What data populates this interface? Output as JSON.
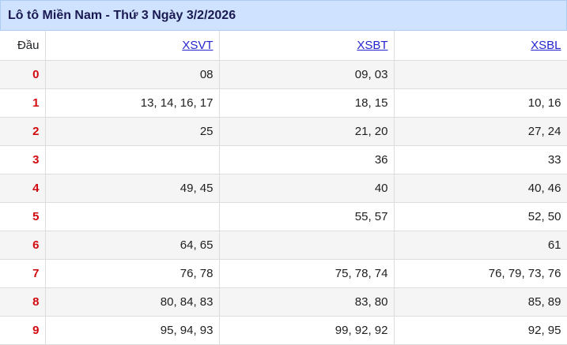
{
  "title": "Lô tô Miền Nam - Thứ 3 Ngày 3/2/2026",
  "columns": {
    "head": "Đầu",
    "xsvt": "XSVT",
    "xsbt": "XSBT",
    "xsbl": "XSBL"
  },
  "rows": [
    {
      "head": "0",
      "xsvt": "08",
      "xsbt": "09, 03",
      "xsbl": ""
    },
    {
      "head": "1",
      "xsvt": "13, 14, 16, 17",
      "xsbt": "18, 15",
      "xsbl": "10, 16"
    },
    {
      "head": "2",
      "xsvt": "25",
      "xsbt": "21, 20",
      "xsbl": "27, 24"
    },
    {
      "head": "3",
      "xsvt": "",
      "xsbt": "36",
      "xsbl": "33"
    },
    {
      "head": "4",
      "xsvt": "49, 45",
      "xsbt": "40",
      "xsbl": "40, 46"
    },
    {
      "head": "5",
      "xsvt": "",
      "xsbt": "55, 57",
      "xsbl": "52, 50"
    },
    {
      "head": "6",
      "xsvt": "64, 65",
      "xsbt": "",
      "xsbl": "61"
    },
    {
      "head": "7",
      "xsvt": "76, 78",
      "xsbt": "75, 78, 74",
      "xsbl": "76, 79, 73, 76"
    },
    {
      "head": "8",
      "xsvt": "80, 84, 83",
      "xsbt": "83, 80",
      "xsbl": "85, 89"
    },
    {
      "head": "9",
      "xsvt": "95, 94, 93",
      "xsbt": "99, 92, 92",
      "xsbl": "92, 95"
    }
  ],
  "colors": {
    "titlebar_bg": "#cfe2ff",
    "titlebar_border": "#aecdf2",
    "title_text": "#1a1a52",
    "link": "#2424cd",
    "head_digit": "#d10a10",
    "stripe_row_bg": "#f5f5f5",
    "cell_border": "#dddddd",
    "cell_text": "#212121"
  }
}
